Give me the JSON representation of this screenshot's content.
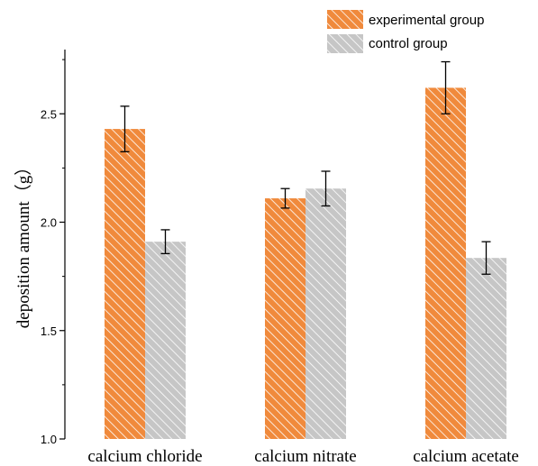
{
  "chart_data": {
    "type": "bar",
    "categories": [
      "calcium chloride",
      "calcium nitrate",
      "calcium acetate"
    ],
    "series": [
      {
        "name": "experimental group",
        "values": [
          2.43,
          2.11,
          2.62
        ],
        "errors": [
          0.105,
          0.045,
          0.12
        ],
        "color": "#f08a3c",
        "hatch": "#ffffff"
      },
      {
        "name": "control group",
        "values": [
          1.91,
          2.155,
          1.835
        ],
        "errors": [
          0.055,
          0.08,
          0.075
        ],
        "color": "#c6c6c6",
        "hatch": "#ffffff"
      }
    ],
    "xlabel": "",
    "ylabel": "deposition amount（g）",
    "ylim": [
      1.0,
      2.8
    ],
    "yticks": [
      "1.0",
      "1.5",
      "2.0",
      "2.5"
    ],
    "ytick_values": [
      1.0,
      1.5,
      2.0,
      2.5
    ],
    "legend": "top-right",
    "grid": false
  }
}
